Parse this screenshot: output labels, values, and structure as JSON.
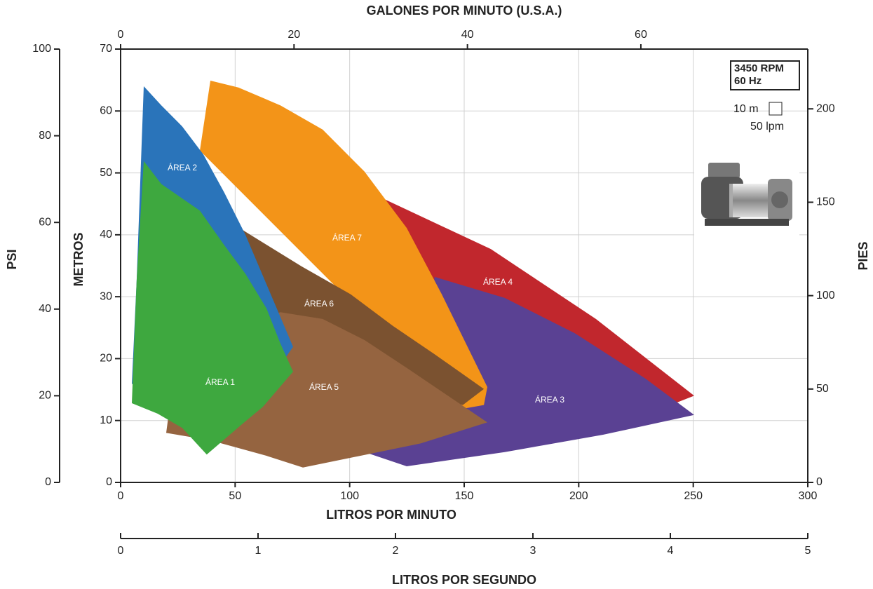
{
  "chart_data": {
    "type": "area",
    "xlabel": "LITROS POR MINUTO",
    "xlim": [
      0,
      300
    ],
    "xticks": [
      0,
      50,
      100,
      150,
      200,
      250,
      300
    ],
    "ylabel": "METROS",
    "ylim": [
      0,
      70
    ],
    "yticks": [
      0,
      10,
      20,
      30,
      40,
      50,
      60,
      70
    ],
    "x2label": "GALONES POR MINUTO (U.S.A.)",
    "x2lim": [
      0,
      79.25
    ],
    "x2ticks": [
      0,
      20,
      40,
      60
    ],
    "y2label": "PIES",
    "y2lim": [
      0,
      232
    ],
    "y2ticks": [
      0,
      50,
      100,
      150,
      200
    ],
    "y3label": "PSI",
    "y3lim": [
      0,
      100
    ],
    "y3ticks": [
      0,
      20,
      40,
      60,
      80,
      100
    ],
    "x3label": "LITROS POR SEGUNDO",
    "x3lim": [
      0,
      5
    ],
    "x3ticks": [
      0,
      1,
      2,
      3,
      4,
      5
    ],
    "grid": true,
    "annotations": {
      "speed": "3450 RPM",
      "frequency": "60 Hz",
      "scale_m": "10 m",
      "scale_lpm": "50 lpm"
    },
    "series": [
      {
        "name": "ÁREA 4",
        "color": "#c1272d",
        "x": [
          112.6,
          161.6,
          207.5,
          250.4,
          222.8,
          137.1
        ],
        "values": [
          46.2,
          37.7,
          26.4,
          14.0,
          10.0,
          32.6
        ]
      },
      {
        "name": "ÁREA 3",
        "color": "#5a4193",
        "x": [
          137.1,
          167.7,
          198.3,
          229.0,
          250.4,
          210.6,
          167.7,
          124.9,
          106.5,
          131.0
        ],
        "values": [
          33.2,
          29.8,
          24.1,
          16.8,
          10.9,
          7.7,
          4.9,
          2.6,
          4.9,
          15.6
        ]
      },
      {
        "name": "ÁREA 7",
        "color": "#f39418",
        "x": [
          39.2,
          51.4,
          69.8,
          88.2,
          106.5,
          124.9,
          140.2,
          160.1,
          158.6,
          146.3,
          131.0,
          34.6
        ],
        "values": [
          64.9,
          63.8,
          60.9,
          57.0,
          50.2,
          41.1,
          30.4,
          15.4,
          12.5,
          11.7,
          17.9,
          53.6
        ]
      },
      {
        "name": "ÁREA 6",
        "color": "#7b5230",
        "x": [
          36.1,
          54.5,
          79.0,
          100.4,
          118.8,
          137.1,
          158.6,
          149.4,
          39.2
        ],
        "values": [
          45.1,
          40.5,
          34.9,
          30.4,
          25.3,
          20.7,
          15.1,
          12.5,
          23.6
        ]
      },
      {
        "name": "ÁREA 5",
        "color": "#956440",
        "x": [
          48.4,
          69.8,
          88.2,
          106.5,
          124.9,
          143.3,
          160.1,
          131.0,
          79.6,
          63.7,
          39.2,
          19.9,
          20.8
        ],
        "values": [
          25.3,
          27.5,
          26.4,
          23.0,
          18.5,
          13.9,
          9.7,
          6.3,
          2.4,
          4.3,
          6.8,
          8.0,
          10.5
        ]
      },
      {
        "name": "ÁREA 2",
        "color": "#2a74ba",
        "x": [
          10.1,
          17.8,
          26.9,
          36.1,
          45.3,
          54.5,
          63.7,
          75.3,
          69.8,
          4.9,
          7.0
        ],
        "values": [
          64.0,
          60.9,
          57.5,
          53.0,
          46.8,
          40.0,
          32.0,
          21.9,
          19.0,
          15.9,
          32.6
        ]
      },
      {
        "name": "ÁREA 1",
        "color": "#3ea83f",
        "x": [
          10.1,
          17.8,
          34.6,
          45.3,
          54.5,
          63.7,
          69.8,
          75.3,
          62.1,
          53.0,
          37.6,
          26.9,
          16.2,
          4.9,
          7.0
        ],
        "values": [
          51.9,
          48.2,
          43.9,
          38.3,
          33.7,
          28.1,
          22.4,
          17.9,
          12.2,
          9.4,
          4.5,
          8.8,
          11.1,
          12.8,
          32.6
        ]
      }
    ]
  }
}
